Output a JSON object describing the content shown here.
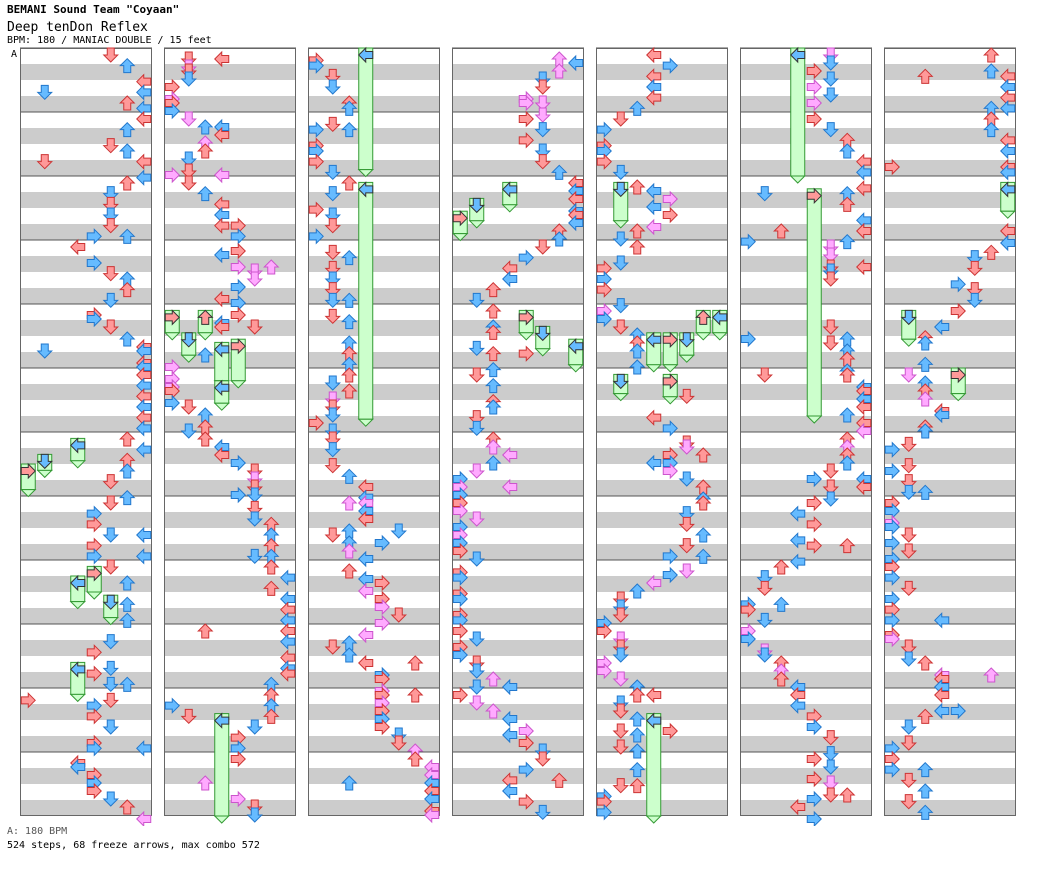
{
  "header": {
    "artist": "BEMANI Sound Team \"Coyaan\"",
    "title": "Deep tenDon Reflex",
    "info": "BPM: 180 / MANIAC DOUBLE / 15 feet"
  },
  "chart": {
    "bpm_marker_label": "A",
    "columns": 7,
    "measures_per_column": 12,
    "lanes": 8,
    "colors": {
      "quarter": "#ff9999",
      "eighth": "#66bbff",
      "sixteenth": "#ffaaff",
      "freeze": "#ccffcc",
      "shock_like": "#66ee66",
      "stripe": "#cccccc",
      "border": "#666666"
    },
    "freezes": [
      {
        "c": 0,
        "lane": 0,
        "start": 6.5,
        "end": 6.9
      },
      {
        "c": 0,
        "lane": 1,
        "start": 6.35,
        "end": 6.6
      },
      {
        "c": 0,
        "lane": 3,
        "start": 6.1,
        "end": 6.45
      },
      {
        "c": 0,
        "lane": 3,
        "start": 8.25,
        "end": 8.65
      },
      {
        "c": 0,
        "lane": 4,
        "start": 8.1,
        "end": 8.5
      },
      {
        "c": 0,
        "lane": 5,
        "start": 8.55,
        "end": 8.9
      },
      {
        "c": 0,
        "lane": 3,
        "start": 9.6,
        "end": 10.1
      },
      {
        "c": 1,
        "lane": 0,
        "start": 4.1,
        "end": 4.45
      },
      {
        "c": 1,
        "lane": 1,
        "start": 4.45,
        "end": 4.8
      },
      {
        "c": 1,
        "lane": 2,
        "start": 4.1,
        "end": 4.45
      },
      {
        "c": 1,
        "lane": 3,
        "start": 4.6,
        "end": 5.2
      },
      {
        "c": 1,
        "lane": 4,
        "start": 4.55,
        "end": 5.2
      },
      {
        "c": 1,
        "lane": 3,
        "start": 5.2,
        "end": 5.55
      },
      {
        "c": 1,
        "lane": 3,
        "start": 10.4,
        "end": 12.0
      },
      {
        "c": 2,
        "lane": 3,
        "start": 0.0,
        "end": 1.9
      },
      {
        "c": 2,
        "lane": 3,
        "start": 2.1,
        "end": 5.8
      },
      {
        "c": 3,
        "lane": 0,
        "start": 2.55,
        "end": 2.9
      },
      {
        "c": 3,
        "lane": 1,
        "start": 2.35,
        "end": 2.7
      },
      {
        "c": 3,
        "lane": 3,
        "start": 2.1,
        "end": 2.45
      },
      {
        "c": 3,
        "lane": 4,
        "start": 4.1,
        "end": 4.45
      },
      {
        "c": 3,
        "lane": 5,
        "start": 4.35,
        "end": 4.7
      },
      {
        "c": 3,
        "lane": 7,
        "start": 4.55,
        "end": 4.95
      },
      {
        "c": 4,
        "lane": 1,
        "start": 2.1,
        "end": 2.7
      },
      {
        "c": 4,
        "lane": 3,
        "start": 4.45,
        "end": 4.95
      },
      {
        "c": 4,
        "lane": 4,
        "start": 4.45,
        "end": 4.95
      },
      {
        "c": 4,
        "lane": 4,
        "start": 5.1,
        "end": 5.45
      },
      {
        "c": 4,
        "lane": 1,
        "start": 5.1,
        "end": 5.4
      },
      {
        "c": 4,
        "lane": 5,
        "start": 4.45,
        "end": 4.8
      },
      {
        "c": 4,
        "lane": 6,
        "start": 4.1,
        "end": 4.45
      },
      {
        "c": 4,
        "lane": 7,
        "start": 4.1,
        "end": 4.45
      },
      {
        "c": 4,
        "lane": 3,
        "start": 10.4,
        "end": 12.0
      },
      {
        "c": 5,
        "lane": 3,
        "start": 0.0,
        "end": 2.0
      },
      {
        "c": 5,
        "lane": 4,
        "start": 2.2,
        "end": 5.75
      },
      {
        "c": 6,
        "lane": 7,
        "start": 2.1,
        "end": 2.55
      },
      {
        "c": 6,
        "lane": 1,
        "start": 4.1,
        "end": 4.55
      },
      {
        "c": 6,
        "lane": 4,
        "start": 5.0,
        "end": 5.4
      }
    ]
  },
  "footer": {
    "bpm_line": "A: 180 BPM",
    "stats": "524 steps, 68 freeze arrows, max combo 572"
  }
}
